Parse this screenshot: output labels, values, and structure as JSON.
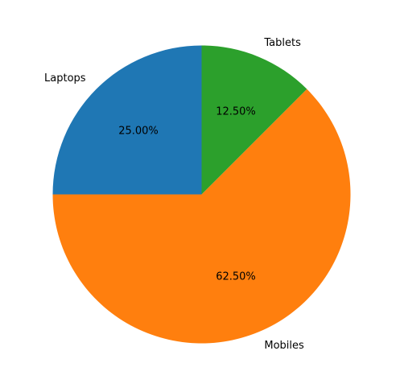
{
  "chart_data": {
    "type": "pie",
    "categories": [
      "Laptops",
      "Mobiles",
      "Tablets"
    ],
    "values": [
      25.0,
      62.5,
      12.5
    ],
    "percent_labels": [
      "25.00%",
      "62.50%",
      "12.50%"
    ],
    "colors": [
      "#1f77b4",
      "#ff7f0e",
      "#2ca02c"
    ],
    "start_angle_deg": 90,
    "direction": "counterclockwise",
    "title": "",
    "legend": "none"
  }
}
